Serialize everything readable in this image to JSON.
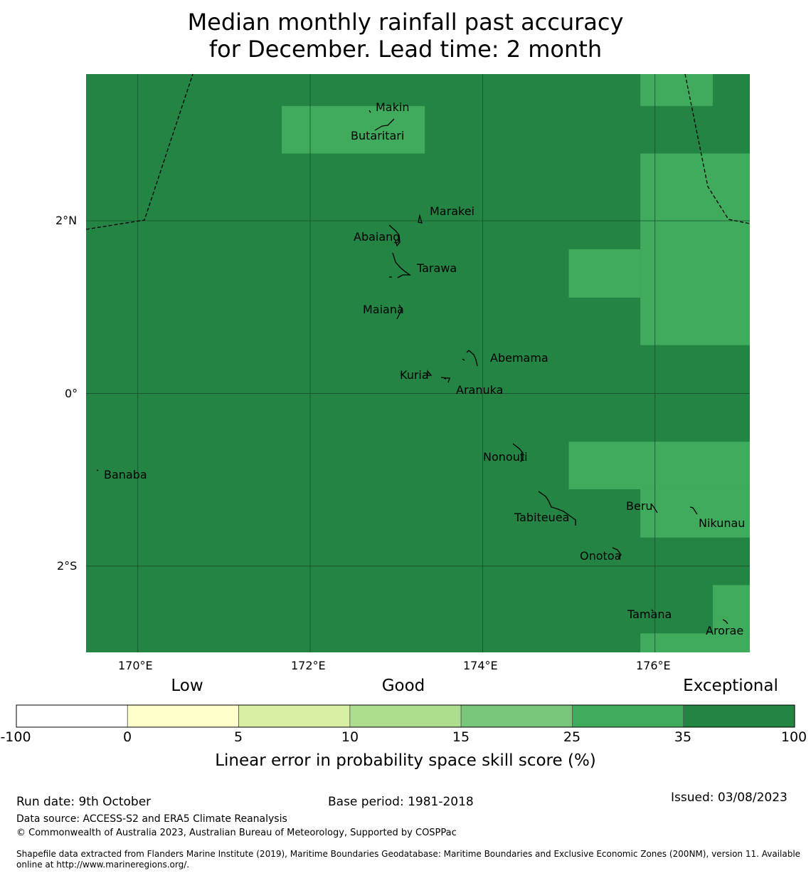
{
  "title": {
    "line1": "Median monthly rainfall past accuracy",
    "line2": "for December. Lead time: 2 month"
  },
  "map": {
    "lon_range": [
      169.4,
      177.1
    ],
    "lat_range": [
      -3.0,
      3.7
    ],
    "lon_ticks": [
      {
        "value": 170,
        "label": "170°E"
      },
      {
        "value": 172,
        "label": "172°E"
      },
      {
        "value": 174,
        "label": "174°E"
      },
      {
        "value": 176,
        "label": "176°E"
      }
    ],
    "lat_ticks": [
      {
        "value": 2,
        "label": "2°N"
      },
      {
        "value": 0,
        "label": "0°"
      },
      {
        "value": -2,
        "label": "2°S"
      }
    ],
    "background_category": "35 to 100",
    "background_color": "#238443",
    "lighter_color": "#41ab5d",
    "skill_patches_25_35": [
      {
        "lon": [
          171.67,
          173.33
        ],
        "lat": [
          2.78,
          3.33
        ]
      },
      {
        "lon": [
          175.83,
          176.67
        ],
        "lat": [
          3.33,
          3.7
        ]
      },
      {
        "lon": [
          175.83,
          177.1
        ],
        "lat": [
          0.56,
          2.78
        ]
      },
      {
        "lon": [
          175.0,
          175.83
        ],
        "lat": [
          1.11,
          1.67
        ]
      },
      {
        "lon": [
          175.0,
          177.1
        ],
        "lat": [
          -1.11,
          -0.56
        ]
      },
      {
        "lon": [
          175.83,
          177.1
        ],
        "lat": [
          -1.67,
          -1.11
        ]
      },
      {
        "lon": [
          176.67,
          177.1
        ],
        "lat": [
          -2.78,
          -2.22
        ]
      },
      {
        "lon": [
          175.83,
          177.1
        ],
        "lat": [
          -3.0,
          -2.78
        ]
      }
    ],
    "islands": [
      {
        "name": "Makin",
        "lon": 173.0,
        "lat": 3.38
      },
      {
        "name": "Butaritari",
        "lon": 172.9,
        "lat": 3.05
      },
      {
        "name": "Marakei",
        "lon": 173.3,
        "lat": 2.0
      },
      {
        "name": "Abaiang",
        "lon": 173.0,
        "lat": 1.85
      },
      {
        "name": "Tarawa",
        "lon": 173.1,
        "lat": 1.45
      },
      {
        "name": "Maiana",
        "lon": 173.0,
        "lat": 0.95
      },
      {
        "name": "Abemama",
        "lon": 173.9,
        "lat": 0.38
      },
      {
        "name": "Kuria",
        "lon": 173.4,
        "lat": 0.22
      },
      {
        "name": "Aranuka",
        "lon": 173.6,
        "lat": 0.17
      },
      {
        "name": "Nonouti",
        "lon": 174.4,
        "lat": -0.65
      },
      {
        "name": "Banaba",
        "lon": 169.53,
        "lat": -0.9
      },
      {
        "name": "Tabiteuea",
        "lon": 174.9,
        "lat": -1.35
      },
      {
        "name": "Beru",
        "lon": 176.0,
        "lat": -1.33
      },
      {
        "name": "Nikunau",
        "lon": 176.45,
        "lat": -1.35
      },
      {
        "name": "Onotoa",
        "lon": 175.6,
        "lat": -1.85
      },
      {
        "name": "Tamana",
        "lon": 175.98,
        "lat": -2.5
      },
      {
        "name": "Arorae",
        "lon": 176.8,
        "lat": -2.65
      }
    ]
  },
  "colorbar": {
    "categories": [
      {
        "label": "Low",
        "position": 0.2
      },
      {
        "label": "Good",
        "position": 0.5
      },
      {
        "label": "Exceptional",
        "position": 0.92
      }
    ],
    "bins": [
      {
        "from": "-100",
        "to": "0",
        "color": "#ffffff"
      },
      {
        "from": "0",
        "to": "5",
        "color": "#ffffcc"
      },
      {
        "from": "5",
        "to": "10",
        "color": "#d9f0a3"
      },
      {
        "from": "10",
        "to": "15",
        "color": "#addd8e"
      },
      {
        "from": "15",
        "to": "25",
        "color": "#78c679"
      },
      {
        "from": "25",
        "to": "35",
        "color": "#41ab5d"
      },
      {
        "from": "35",
        "to": "100",
        "color": "#238443"
      }
    ],
    "tick_labels": [
      "-100",
      "0",
      "5",
      "10",
      "15",
      "25",
      "35",
      "100"
    ],
    "label": "Linear error in probability space skill score (%)"
  },
  "footer": {
    "run_date": "Run date: 9th October",
    "base_period": "Base period: 1981-2018",
    "issued": "Issued: 03/08/2023",
    "data_source": "Data source: ACCESS-S2 and ERA5 Climate Reanalysis",
    "copyright": "© Commonwealth of Australia 2023, Australian Bureau of Meteorology, Supported by COSPPac",
    "shapefile_line1": "Shapefile data extracted from Flanders Marine Institute (2019), Maritime Boundaries Geodatabase: Maritime Boundaries and Exclusive Economic Zones (200NM), version 11. Available",
    "shapefile_line2": "online at http://www.marineregions.org/."
  }
}
